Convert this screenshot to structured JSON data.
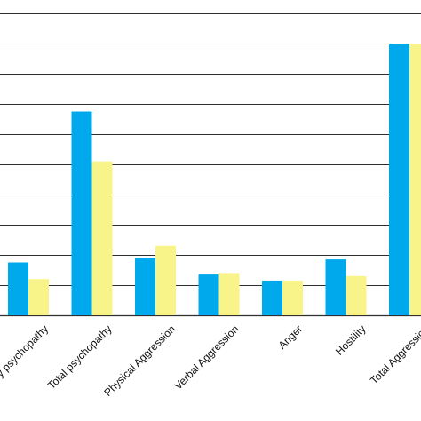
{
  "colors": {
    "series_1": "#00a8ec",
    "series_2": "#f8f48a",
    "gridline": "#2f2f2f",
    "background": "#ffffff"
  },
  "chart_data": {
    "type": "bar",
    "title": "",
    "xlabel": "",
    "ylabel": "",
    "ylim": [
      0,
      20
    ],
    "grid": true,
    "categories": [
      "Primary psychopathy",
      "Total psychopathy",
      "Physical Aggression",
      "Verbal Aggression",
      "Anger",
      "Hostility",
      "Total Aggression"
    ],
    "series": [
      {
        "values": [
          3.5,
          13.5,
          3.8,
          2.7,
          2.3,
          3.7,
          18.0
        ]
      },
      {
        "values": [
          2.4,
          10.2,
          4.6,
          2.8,
          2.3,
          2.6,
          18.0
        ]
      }
    ]
  }
}
